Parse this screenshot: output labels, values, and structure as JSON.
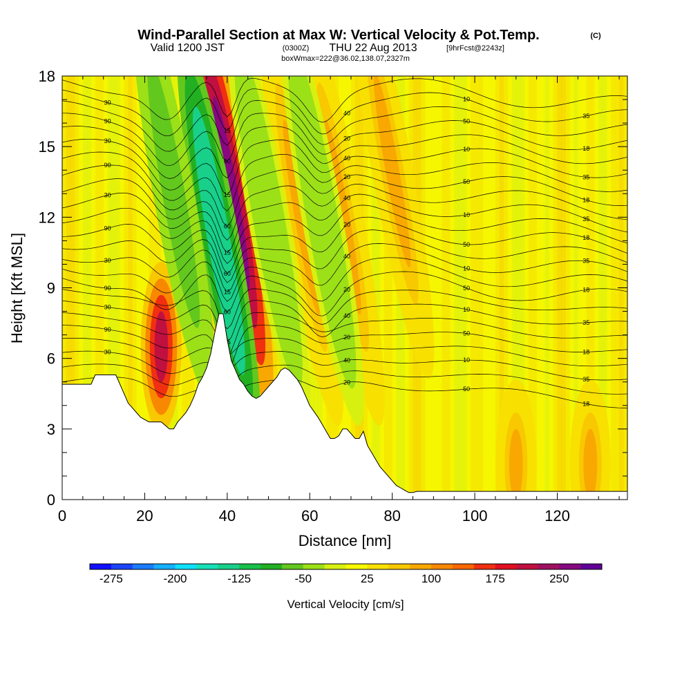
{
  "title": {
    "main": "Wind-Parallel Section at Max W: Vertical Velocity & Pot.Temp.",
    "copyright": "(C)",
    "valid_prefix": "Valid 1200 JST",
    "valid_utc": "(0300Z)",
    "valid_date": "THU 22 Aug 2013",
    "forecast": "[9hrFcst@2243z]",
    "box": "boxWmax=222@36.02,138.07,2327m"
  },
  "chart_data": {
    "type": "heatmap",
    "xlabel": "Distance [nm]",
    "ylabel": "Height [Kft MSL]",
    "xlim": [
      0,
      137
    ],
    "ylim": [
      0,
      18
    ],
    "x_ticks": [
      0,
      20,
      40,
      60,
      80,
      100,
      120
    ],
    "y_ticks": [
      0,
      3,
      6,
      9,
      12,
      15,
      18
    ],
    "x_tick_labels": [
      "0",
      "20",
      "40",
      "60",
      "80",
      "100",
      "120"
    ],
    "y_tick_labels": [
      "0",
      "3",
      "6",
      "9",
      "12",
      "15",
      "18"
    ],
    "terrain": {
      "x": [
        0,
        7,
        8,
        13,
        14,
        15,
        16,
        17,
        18,
        19,
        20,
        21,
        22,
        24,
        26,
        27,
        28,
        29,
        30,
        31,
        32,
        33,
        34,
        35,
        36,
        37,
        38,
        39,
        40,
        41,
        42,
        43,
        44,
        45,
        46,
        47,
        48,
        49,
        50,
        51,
        52,
        53,
        54,
        55,
        56,
        57,
        58,
        59,
        60,
        62,
        63,
        64,
        65,
        66,
        67,
        68,
        69,
        70,
        71,
        72,
        73,
        74,
        75,
        76,
        77,
        78,
        79,
        80,
        81,
        82,
        83,
        84,
        85,
        86,
        137
      ],
      "height": [
        4.9,
        4.9,
        5.3,
        5.3,
        4.9,
        4.5,
        4.1,
        3.9,
        3.7,
        3.5,
        3.4,
        3.3,
        3.3,
        3.3,
        3.0,
        3.0,
        3.3,
        3.5,
        3.7,
        4.0,
        4.4,
        4.9,
        5.2,
        5.6,
        6.2,
        7.1,
        7.9,
        7.9,
        6.8,
        5.9,
        5.5,
        5.1,
        4.9,
        4.6,
        4.4,
        4.3,
        4.4,
        4.6,
        4.8,
        5.0,
        5.2,
        5.5,
        5.6,
        5.5,
        5.3,
        5.1,
        4.8,
        4.4,
        4.0,
        3.5,
        3.2,
        2.9,
        2.6,
        2.6,
        2.7,
        3.0,
        3.0,
        2.8,
        2.6,
        2.6,
        2.9,
        2.3,
        2.0,
        1.7,
        1.4,
        1.2,
        1.0,
        0.8,
        0.6,
        0.5,
        0.4,
        0.3,
        0.3,
        0.35,
        0.35
      ]
    },
    "vertical_velocity_features": [
      {
        "x": 24,
        "y_center": 6.5,
        "peak": 200
      },
      {
        "x": 41,
        "y_center": 13.0,
        "peak": 250
      },
      {
        "x": 38,
        "y_center": 11.0,
        "peak": -150
      },
      {
        "x": 58,
        "y_center": 12.0,
        "peak": 75
      },
      {
        "x": 68,
        "y_center": 12.0,
        "peak": 75
      },
      {
        "x": 80,
        "y_center": 14.0,
        "peak": 75
      },
      {
        "x": 27,
        "y_center": 13.0,
        "peak": -75
      },
      {
        "x": 50,
        "y_center": 12.0,
        "peak": -50
      },
      {
        "x": 63,
        "y_center": 12.0,
        "peak": -50
      },
      {
        "x": 110,
        "y_center": 1.5,
        "peak": 75
      },
      {
        "x": 128,
        "y_center": 1.5,
        "peak": 75
      }
    ],
    "pot_temp_contour_labels": [
      "90",
      "60",
      "20",
      "50",
      "18",
      "30",
      "15",
      "40",
      "10",
      "35"
    ],
    "colorbar": {
      "label": "Vertical Velocity [cm/s]",
      "tick_labels": [
        "-275",
        "-200",
        "-125",
        "-50",
        "25",
        "100",
        "175",
        "250"
      ],
      "tick_values": [
        -275,
        -200,
        -125,
        -50,
        25,
        100,
        175,
        250
      ],
      "colors": [
        "#1010ff",
        "#1a44ff",
        "#1a7cff",
        "#15b0ff",
        "#0fe0ff",
        "#18e0b8",
        "#18d08a",
        "#18c04a",
        "#22b022",
        "#63c81e",
        "#9ce018",
        "#d8f010",
        "#f8f800",
        "#f8e000",
        "#f8c800",
        "#f8a800",
        "#f88800",
        "#f86800",
        "#f03010",
        "#e01020",
        "#c01040",
        "#a01060",
        "#880880",
        "#600098"
      ]
    }
  }
}
